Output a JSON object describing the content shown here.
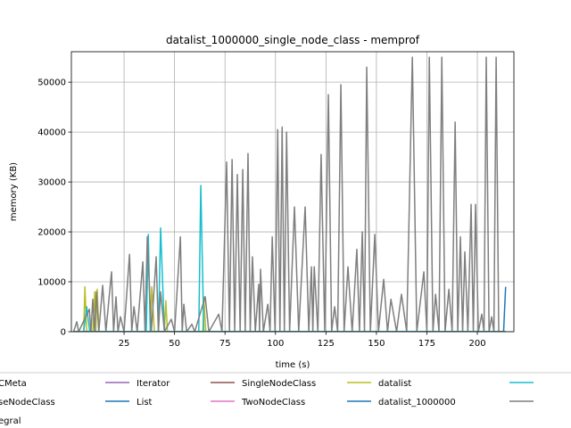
{
  "chart_data": {
    "type": "line",
    "title": "datalist_1000000_single_node_class - memprof",
    "x_label": "time (s)",
    "y_label": "memory (KB)",
    "xlim": [
      -1.1,
      218.1
    ],
    "ylim": [
      0,
      56100
    ],
    "xticks": [
      25,
      50,
      75,
      100,
      125,
      150,
      175,
      200
    ],
    "yticks": [
      0,
      10000,
      20000,
      30000,
      40000,
      50000
    ],
    "grid": true,
    "legend": "bottom",
    "series": [
      {
        "name": "CMeta",
        "color": "#1f77b4",
        "x": [
          0,
          214
        ],
        "values": [
          0,
          0
        ]
      },
      {
        "name": "seNodeClass",
        "color": "#ff7f0e",
        "x": [
          0,
          214
        ],
        "values": [
          0,
          0
        ]
      },
      {
        "name": "egral",
        "color": "#2ca02c",
        "x": [
          0,
          214
        ],
        "values": [
          0,
          0
        ]
      },
      {
        "name": "Iterator",
        "color": "#9467bd",
        "x": [
          0,
          214
        ],
        "values": [
          0,
          0
        ]
      },
      {
        "name": "List",
        "color": "#1f77b4",
        "x": [
          0,
          214
        ],
        "values": [
          0,
          0
        ]
      },
      {
        "name": "SingleNodeClass",
        "color": "#8c564b",
        "x": [
          0,
          214
        ],
        "values": [
          0,
          0
        ]
      },
      {
        "name": "TwoNodeClass",
        "color": "#e377c2",
        "x": [
          0,
          214
        ],
        "values": [
          0,
          0
        ]
      },
      {
        "name": "datalist",
        "color": "#bcbd22",
        "x": [
          0,
          5,
          5.6,
          6.5,
          9.5,
          10.5,
          11,
          11.7,
          12.5,
          38,
          38.7,
          40,
          45,
          45.7,
          46.5,
          64,
          64.5,
          65.5,
          214
        ],
        "values": [
          0,
          0,
          9000,
          0,
          0,
          8000,
          0,
          8500,
          0,
          0,
          9000,
          0,
          0,
          6200,
          0,
          0,
          7000,
          0,
          0
        ]
      },
      {
        "name": "datalist_1000000",
        "color": "#1f77b4",
        "x": [
          0,
          213,
          214
        ],
        "values": [
          0,
          0,
          9000
        ]
      },
      {
        "name": null,
        "color": "#17becf",
        "x": [
          0,
          5,
          6.5,
          8,
          36,
          37,
          38,
          42,
          43.1,
          45,
          62,
          63,
          64.5,
          214
        ],
        "values": [
          0,
          0,
          5000,
          0,
          0,
          19500,
          0,
          0,
          20800,
          0,
          0,
          29300,
          0,
          0
        ]
      },
      {
        "name": null,
        "color": "#7f7f7f",
        "x": [
          0,
          1.6,
          2.5,
          7.8,
          8.6,
          9.5,
          10.4,
          11.3,
          12.5,
          14.4,
          16,
          18.8,
          19.8,
          21,
          22,
          23.2,
          25,
          27.7,
          28.8,
          29.9,
          31.5,
          34.3,
          35.4,
          36.5,
          38.5,
          40.9,
          42,
          43.1,
          45,
          48.4,
          50,
          52.9,
          53.8,
          54.6,
          56,
          58.6,
          60,
          65.2,
          67,
          71.9,
          73.5,
          75.8,
          77.2,
          78.5,
          79.8,
          81.1,
          82.5,
          83.8,
          85,
          86.4,
          87.5,
          88.6,
          90,
          91.7,
          92.1,
          92.6,
          94,
          96.2,
          97.3,
          98.4,
          99.8,
          101.1,
          102.2,
          103.3,
          104.4,
          105.5,
          107,
          109.4,
          111.5,
          114.7,
          116.5,
          117.8,
          118.5,
          119.2,
          121,
          122.6,
          124.4,
          126.2,
          127.8,
          129.3,
          130.8,
          132.4,
          134,
          135.9,
          138,
          140.3,
          141.6,
          143,
          144.1,
          145.2,
          147,
          149.2,
          151,
          153.6,
          155.5,
          157.2,
          160,
          162.4,
          165,
          167.8,
          170,
          173.5,
          175,
          176.2,
          178,
          179.3,
          181,
          182.4,
          184,
          185.9,
          187.5,
          189,
          190.3,
          191.6,
          192.7,
          193.8,
          195.3,
          196.9,
          198,
          199.1,
          200.5,
          202.2,
          203.3,
          204.4,
          205.8,
          207.1,
          208.2,
          209.3,
          210.6,
          213
        ],
        "values": [
          0,
          2000,
          0,
          4500,
          0,
          6500,
          0,
          8000,
          0,
          9300,
          0,
          12000,
          0,
          7000,
          0,
          3000,
          0,
          15500,
          0,
          5000,
          0,
          14000,
          0,
          19000,
          0,
          15000,
          0,
          8000,
          0,
          2500,
          0,
          19000,
          0,
          5500,
          0,
          1500,
          0,
          7000,
          0,
          3500,
          0,
          34000,
          0,
          34500,
          0,
          31500,
          0,
          32500,
          0,
          35700,
          0,
          15000,
          0,
          9500,
          0,
          12500,
          0,
          5500,
          0,
          19000,
          0,
          40500,
          0,
          41000,
          0,
          40000,
          0,
          25000,
          0,
          25000,
          0,
          13000,
          0,
          13000,
          0,
          35500,
          0,
          47500,
          0,
          5000,
          0,
          49500,
          0,
          13000,
          0,
          16500,
          0,
          20000,
          0,
          53000,
          0,
          19500,
          0,
          10500,
          0,
          6500,
          0,
          7500,
          0,
          55000,
          0,
          12000,
          0,
          55000,
          0,
          7500,
          0,
          55000,
          0,
          8500,
          0,
          42000,
          0,
          19000,
          0,
          16000,
          0,
          25500,
          0,
          25500,
          0,
          3500,
          0,
          55000,
          0,
          3000,
          0,
          55000,
          0,
          0
        ]
      }
    ]
  }
}
